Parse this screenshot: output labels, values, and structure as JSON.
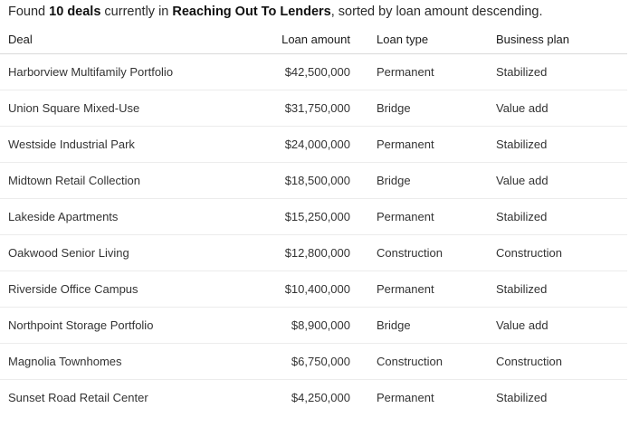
{
  "summary": {
    "prefix": "Found ",
    "count": "10 deals",
    "middle": " currently in ",
    "stage": "Reaching Out To Lenders",
    "suffix": ", sorted by loan amount descending."
  },
  "table": {
    "headers": {
      "deal": "Deal",
      "amount": "Loan amount",
      "type": "Loan type",
      "plan": "Business plan"
    },
    "rows": [
      {
        "deal": "Harborview Multifamily Portfolio",
        "amount": "$42,500,000",
        "type": "Permanent",
        "plan": "Stabilized"
      },
      {
        "deal": "Union Square Mixed-Use",
        "amount": "$31,750,000",
        "type": "Bridge",
        "plan": "Value add"
      },
      {
        "deal": "Westside Industrial Park",
        "amount": "$24,000,000",
        "type": "Permanent",
        "plan": "Stabilized"
      },
      {
        "deal": "Midtown Retail Collection",
        "amount": "$18,500,000",
        "type": "Bridge",
        "plan": "Value add"
      },
      {
        "deal": "Lakeside Apartments",
        "amount": "$15,250,000",
        "type": "Permanent",
        "plan": "Stabilized"
      },
      {
        "deal": "Oakwood Senior Living",
        "amount": "$12,800,000",
        "type": "Construction",
        "plan": "Construction"
      },
      {
        "deal": "Riverside Office Campus",
        "amount": "$10,400,000",
        "type": "Permanent",
        "plan": "Stabilized"
      },
      {
        "deal": "Northpoint Storage Portfolio",
        "amount": "$8,900,000",
        "type": "Bridge",
        "plan": "Value add"
      },
      {
        "deal": "Magnolia Townhomes",
        "amount": "$6,750,000",
        "type": "Construction",
        "plan": "Construction"
      },
      {
        "deal": "Sunset Road Retail Center",
        "amount": "$4,250,000",
        "type": "Permanent",
        "plan": "Stabilized"
      }
    ]
  }
}
